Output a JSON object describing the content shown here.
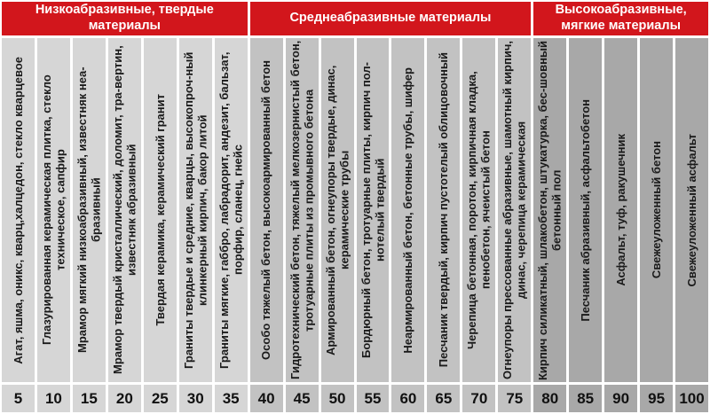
{
  "colors": {
    "section_header_red": "#d2161c",
    "header_text": "#ffffff",
    "low_abrasive_gray": "#d6d6d6",
    "medium_abrasive_gray": "#c2c2c2",
    "high_abrasive_gray": "#a8a8a8",
    "cell_text": "#1a1a1a",
    "gap_white": "#ffffff"
  },
  "chart_data": {
    "type": "table",
    "title": "",
    "value_axis": {
      "min": 5,
      "max": 100,
      "step": 5
    },
    "sections": [
      {
        "title": "Низкоабразивные, твердые материалы",
        "color": "#d6d6d6",
        "columns": [
          {
            "label": "Агат, яшма, оникс, кварц,халцедон, стекло кварцевое",
            "value": 5
          },
          {
            "label": "Глазурированная керамическая плитка, стекло техническое, сапфир",
            "value": 10
          },
          {
            "label": "Мрамор мягкий низкоабразивный, известняк неа-бразивный",
            "value": 15
          },
          {
            "label": "Мрамор твердый кристаллический, доломит, тра-вертин, известняк абразивный",
            "value": 20
          },
          {
            "label": "Твердая керамика, керамический гранит",
            "value": 25
          },
          {
            "label": "Граниты твердые и средние, кварцы, высокопроч-ный клинкерный кирпич, бакор литой",
            "value": 30
          },
          {
            "label": "Граниты мягкие, габбро, лабрадорит, андезит, бальзат, порфир, сланец, гнейс",
            "value": 35
          }
        ]
      },
      {
        "title": "Среднеабразивные материалы",
        "color": "#c2c2c2",
        "columns": [
          {
            "label": "Особо тяжелый бетон, высокоармированный бетон",
            "value": 40
          },
          {
            "label": "Гидротехнический бетон, тяжелый мелкозернистый бетон, тротуарные плиты из промывного бетона",
            "value": 45
          },
          {
            "label": "Армированный бетон, огнеупоры твердые, динас, керамические трубы",
            "value": 50
          },
          {
            "label": "Бордюрный бетон, тротуарные плиты, кирпич пол-нотелый твердый",
            "value": 55
          },
          {
            "label": "Неармированный бетон, бетонные трубы, шифер",
            "value": 60
          },
          {
            "label": "Песчаник твердый, кирпич пустотелый облицовочный",
            "value": 65
          },
          {
            "label": "Черепица бетонная, поротон, кирпичная кладка, пенобетон, ячеистый бетон",
            "value": 70
          },
          {
            "label": "Огнеупоры прессованные абразивные, шамотный кирпич, динас, черепица керамическая",
            "value": 75
          }
        ]
      },
      {
        "title": "Высокоабразивные, мягкие материалы",
        "color": "#a8a8a8",
        "columns": [
          {
            "label": "Кирпич силикатный, шлакобетон, штукатурка, бес-шовный бетонный пол",
            "value": 80
          },
          {
            "label": "Песчаник абразивный, асфальтобетон",
            "value": 85
          },
          {
            "label": "Асфальт, туф, ракушечник",
            "value": 90
          },
          {
            "label": "Свежеуложенный бетон",
            "value": 95
          },
          {
            "label": "Свежеуложенный асфальт",
            "value": 100
          }
        ]
      }
    ]
  }
}
